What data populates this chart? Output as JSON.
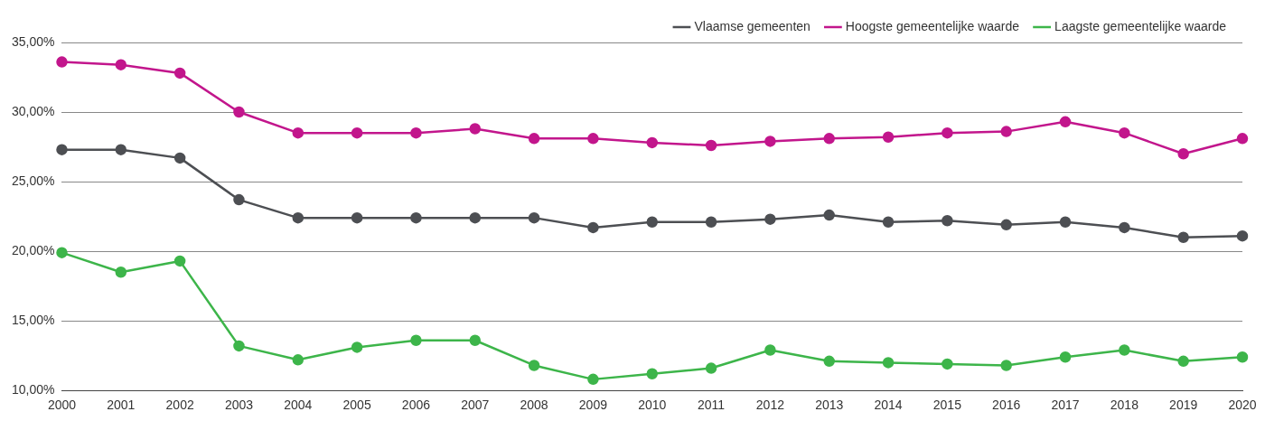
{
  "chart_data": {
    "type": "line",
    "categories": [
      "2000",
      "2001",
      "2002",
      "2003",
      "2004",
      "2005",
      "2006",
      "2007",
      "2008",
      "2009",
      "2010",
      "2011",
      "2012",
      "2013",
      "2014",
      "2015",
      "2016",
      "2017",
      "2018",
      "2019",
      "2020"
    ],
    "series": [
      {
        "name": "Vlaamse gemeenten",
        "color": "#4d4f53",
        "values": [
          27.3,
          27.3,
          26.7,
          23.7,
          22.4,
          22.4,
          22.4,
          22.4,
          22.4,
          21.7,
          22.1,
          22.1,
          22.3,
          22.6,
          22.1,
          22.2,
          21.9,
          22.1,
          21.7,
          21.0,
          21.1
        ]
      },
      {
        "name": "Hoogste gemeentelijke waarde",
        "color": "#c2168c",
        "values": [
          33.6,
          33.4,
          32.8,
          30.0,
          28.5,
          28.5,
          28.5,
          28.8,
          28.1,
          28.1,
          27.8,
          27.6,
          27.9,
          28.1,
          28.2,
          28.5,
          28.6,
          29.3,
          28.5,
          27.0,
          28.1
        ]
      },
      {
        "name": "Laagste gemeentelijke waarde",
        "color": "#3db54a",
        "values": [
          19.9,
          18.5,
          19.3,
          13.2,
          12.2,
          13.1,
          13.6,
          13.6,
          11.8,
          10.8,
          11.2,
          11.6,
          12.9,
          12.1,
          12.0,
          11.9,
          11.8,
          12.4,
          12.9,
          12.1,
          12.4
        ]
      }
    ],
    "ylim": [
      10,
      35
    ],
    "yticks": [
      {
        "value": 10,
        "label": "10,00%"
      },
      {
        "value": 15,
        "label": "15,00%"
      },
      {
        "value": 20,
        "label": "20,00%"
      },
      {
        "value": 25,
        "label": "25,00%"
      },
      {
        "value": 30,
        "label": "30,00%"
      },
      {
        "value": 35,
        "label": "35,00%"
      }
    ],
    "grid": "y",
    "legend": "top right",
    "marker": "circle",
    "line_style": "solid"
  }
}
